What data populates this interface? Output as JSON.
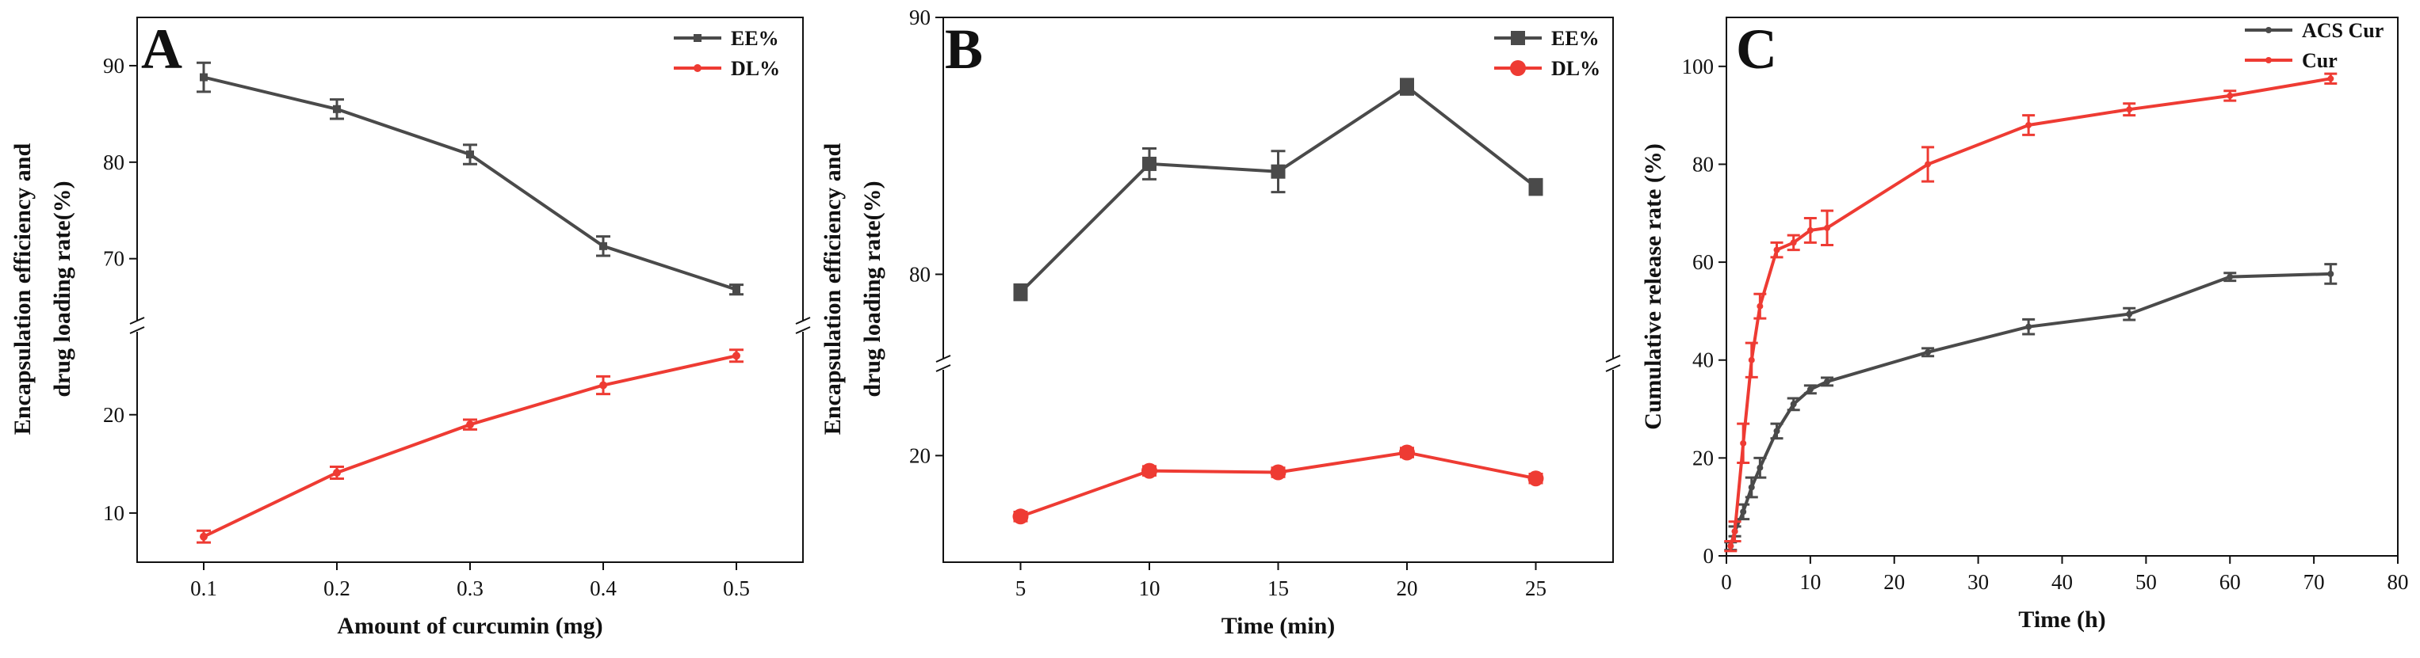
{
  "chart_data": [
    {
      "type": "line",
      "panel_label": "A",
      "xlabel": "Amount of curcumin (mg)",
      "ylabel_lines": [
        "Encapsulation efficiency and",
        "drug loading rate(%)"
      ],
      "x": [
        0.1,
        0.2,
        0.3,
        0.4,
        0.5
      ],
      "x_ticks": [
        0.1,
        0.2,
        0.3,
        0.4,
        0.5
      ],
      "xlim": [
        0.05,
        0.55
      ],
      "axis_break": true,
      "upper_ylim": [
        63,
        95
      ],
      "upper_ticks": [
        70,
        80,
        90
      ],
      "lower_ylim": [
        5,
        29
      ],
      "lower_ticks": [
        10,
        20
      ],
      "legend_position": "top-right",
      "series": [
        {
          "name": "EE%",
          "color": "#4a4a4a",
          "marker": "square-small",
          "segment": "upper",
          "values": [
            88.8,
            85.5,
            80.8,
            71.3,
            66.8
          ],
          "errors": [
            1.5,
            1.0,
            1.0,
            1.0,
            0.5
          ]
        },
        {
          "name": "DL%",
          "color": "#ee3b33",
          "marker": "circle-small",
          "segment": "lower",
          "values": [
            7.6,
            14.1,
            19.0,
            23.0,
            26.0
          ],
          "errors": [
            0.6,
            0.6,
            0.5,
            0.9,
            0.6
          ]
        }
      ]
    },
    {
      "type": "line",
      "panel_label": "B",
      "xlabel": "Time (min)",
      "ylabel_lines": [
        "Encapsulation efficiency and",
        "drug loading rate(%)"
      ],
      "x": [
        5,
        10,
        15,
        20,
        25
      ],
      "x_ticks": [
        5,
        10,
        15,
        20,
        25
      ],
      "xlim": [
        2,
        28
      ],
      "axis_break": true,
      "upper_ylim": [
        76.5,
        90
      ],
      "upper_ticks": [
        80,
        90
      ],
      "lower_ylim": [
        13,
        26
      ],
      "lower_ticks": [
        20
      ],
      "legend_position": "top-right",
      "series": [
        {
          "name": "EE%",
          "color": "#4a4a4a",
          "marker": "square",
          "segment": "upper",
          "values": [
            79.3,
            84.3,
            84.0,
            87.3,
            83.4
          ],
          "errors": [
            0.3,
            0.6,
            0.8,
            0.3,
            0.3
          ]
        },
        {
          "name": "DL%",
          "color": "#ee3b33",
          "marker": "circle",
          "segment": "lower",
          "values": [
            16.0,
            19.0,
            18.9,
            20.2,
            18.5
          ],
          "errors": [
            0.3,
            0.3,
            0.3,
            0.3,
            0.3
          ]
        }
      ]
    },
    {
      "type": "line",
      "panel_label": "C",
      "xlabel": "Time (h)",
      "ylabel": "Cumulative release rate (%)",
      "xlim": [
        0,
        80
      ],
      "ylim": [
        0,
        110
      ],
      "x_ticks": [
        0,
        10,
        20,
        30,
        40,
        50,
        60,
        70,
        80
      ],
      "y_ticks": [
        0,
        20,
        40,
        60,
        80,
        100
      ],
      "legend_position": "top-right",
      "series": [
        {
          "name": "ACS Cur",
          "color": "#4a4a4a",
          "marker": "small",
          "x": [
            0.5,
            1,
            2,
            3,
            4,
            6,
            8,
            10,
            12,
            24,
            36,
            48,
            60,
            72
          ],
          "values": [
            2,
            5,
            9,
            14,
            18,
            25.5,
            31,
            34,
            35.6,
            41.6,
            46.8,
            49.4,
            57,
            57.6
          ],
          "errors": [
            0.8,
            1.0,
            1.5,
            2.0,
            2.0,
            1.5,
            1.2,
            0.8,
            0.8,
            0.8,
            1.5,
            1.2,
            0.8,
            2.0
          ]
        },
        {
          "name": "Cur",
          "color": "#ee3b33",
          "marker": "small",
          "x": [
            0.5,
            1,
            2,
            3,
            4,
            6,
            8,
            10,
            12,
            24,
            36,
            48,
            60,
            72
          ],
          "values": [
            2,
            5,
            23,
            40,
            51,
            62.5,
            64,
            66.5,
            67,
            80,
            88,
            91.2,
            94,
            97.5
          ],
          "errors": [
            1.0,
            2.0,
            4.0,
            3.5,
            2.5,
            1.5,
            1.5,
            2.5,
            3.5,
            3.5,
            2.0,
            1.2,
            1.0,
            1.0
          ]
        }
      ]
    }
  ]
}
